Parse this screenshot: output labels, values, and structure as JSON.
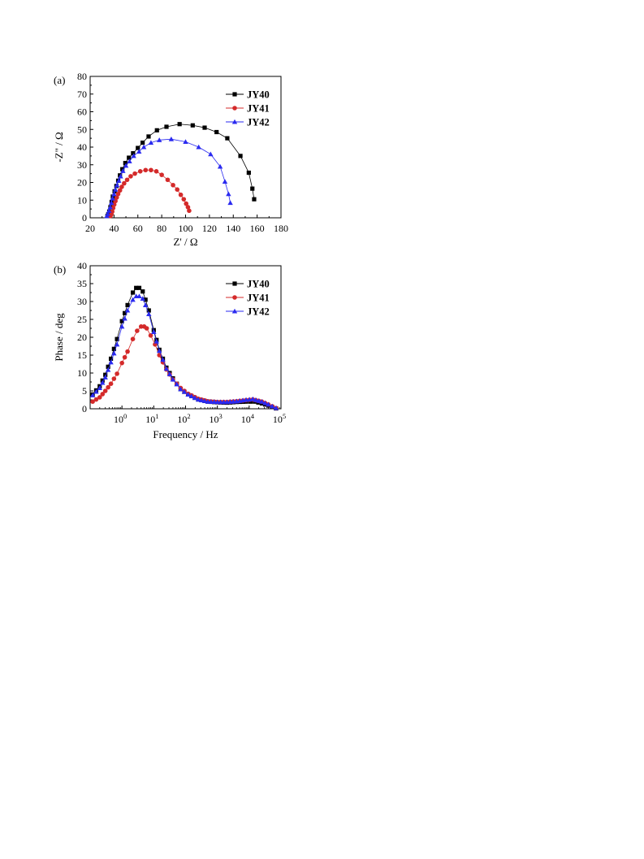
{
  "chart_data": [
    {
      "panel_label": "(a)",
      "type": "scatter",
      "xlabel": "Z' / Ω",
      "ylabel": "-Z\" / Ω",
      "xlim": [
        20,
        180
      ],
      "ylim": [
        0,
        80
      ],
      "xticks": [
        20,
        40,
        60,
        80,
        100,
        120,
        140,
        160,
        180
      ],
      "yticks": [
        0,
        10,
        20,
        30,
        40,
        50,
        60,
        70,
        80
      ],
      "legend_position": "top-right",
      "series": [
        {
          "name": "JY40",
          "color": "#000000",
          "marker": "square",
          "points": [
            [
              34.5,
              1
            ],
            [
              35.2,
              2
            ],
            [
              36,
              3.5
            ],
            [
              37,
              6
            ],
            [
              38,
              9
            ],
            [
              39,
              12
            ],
            [
              40.5,
              15
            ],
            [
              42,
              18
            ],
            [
              43.5,
              21
            ],
            [
              45,
              24
            ],
            [
              47,
              27.5
            ],
            [
              49.5,
              31
            ],
            [
              52.5,
              34
            ],
            [
              56,
              36.5
            ],
            [
              60,
              39.5
            ],
            [
              64,
              42.5
            ],
            [
              69,
              46
            ],
            [
              76,
              49.5
            ],
            [
              84,
              51.5
            ],
            [
              95,
              53
            ],
            [
              106,
              52.3
            ],
            [
              116,
              51
            ],
            [
              126,
              48.5
            ],
            [
              135,
              45
            ],
            [
              146,
              35
            ],
            [
              153,
              25.5
            ],
            [
              156,
              16.5
            ],
            [
              157.5,
              10.5
            ]
          ]
        },
        {
          "name": "JY41",
          "color": "#d42a2a",
          "marker": "circle",
          "points": [
            [
              37,
              1
            ],
            [
              37.8,
              2
            ],
            [
              38.5,
              3.5
            ],
            [
              39.3,
              5.5
            ],
            [
              40.2,
              7.5
            ],
            [
              41.2,
              9.5
            ],
            [
              42.3,
              11.5
            ],
            [
              43.5,
              13.5
            ],
            [
              45,
              15.5
            ],
            [
              46.5,
              17.5
            ],
            [
              48.5,
              19.5
            ],
            [
              51,
              21.5
            ],
            [
              54,
              23.5
            ],
            [
              57.5,
              25
            ],
            [
              62,
              26.3
            ],
            [
              66.5,
              27
            ],
            [
              71,
              27
            ],
            [
              75.5,
              26.3
            ],
            [
              80,
              24.3
            ],
            [
              85,
              21.5
            ],
            [
              89.5,
              18.5
            ],
            [
              93,
              16
            ],
            [
              96,
              13
            ],
            [
              98.5,
              10.5
            ],
            [
              100.5,
              8
            ],
            [
              102,
              6
            ],
            [
              103,
              4
            ]
          ]
        },
        {
          "name": "JY42",
          "color": "#2a2af0",
          "marker": "triangle",
          "points": [
            [
              34,
              1
            ],
            [
              34.8,
              2.2
            ],
            [
              35.8,
              4
            ],
            [
              36.8,
              6
            ],
            [
              37.8,
              8.5
            ],
            [
              38.8,
              11
            ],
            [
              40,
              13.5
            ],
            [
              41.2,
              16
            ],
            [
              42.5,
              18.5
            ],
            [
              44,
              21
            ],
            [
              45.5,
              23.5
            ],
            [
              47.5,
              26.5
            ],
            [
              50,
              29.5
            ],
            [
              53,
              32
            ],
            [
              56.5,
              35
            ],
            [
              61,
              37.5
            ],
            [
              65,
              40
            ],
            [
              71,
              42.5
            ],
            [
              78,
              44
            ],
            [
              88,
              44.5
            ],
            [
              100,
              43
            ],
            [
              111,
              40
            ],
            [
              121,
              36
            ],
            [
              129,
              29
            ],
            [
              133,
              20.5
            ],
            [
              136,
              13.5
            ],
            [
              137.5,
              8.5
            ]
          ]
        }
      ]
    },
    {
      "panel_label": "(b)",
      "type": "scatter",
      "xlabel": "Frequency / Hz",
      "ylabel": "Phase / deg",
      "xscale": "log",
      "xlim": [
        0.1,
        100000
      ],
      "ylim": [
        0,
        40
      ],
      "xticks": [
        1,
        10,
        100,
        1000,
        10000,
        100000
      ],
      "xtick_labels": [
        {
          "base": "10",
          "exp": "0"
        },
        {
          "base": "10",
          "exp": "1"
        },
        {
          "base": "10",
          "exp": "2"
        },
        {
          "base": "10",
          "exp": "3"
        },
        {
          "base": "10",
          "exp": "4"
        },
        {
          "base": "10",
          "exp": "5"
        }
      ],
      "yticks": [
        0,
        5,
        10,
        15,
        20,
        25,
        30,
        35,
        40
      ],
      "legend_position": "top-right",
      "series": [
        {
          "name": "JY40",
          "color": "#000000",
          "marker": "square",
          "key_points": [
            [
              0.12,
              4
            ],
            [
              0.2,
              6.3
            ],
            [
              0.3,
              9.5
            ],
            [
              0.45,
              14
            ],
            [
              0.7,
              19.5
            ],
            [
              1,
              24.5
            ],
            [
              1.5,
              29
            ],
            [
              2.2,
              32.5
            ],
            [
              2.8,
              33.8
            ],
            [
              3.5,
              33.8
            ],
            [
              4.5,
              32.8
            ],
            [
              5.5,
              30.5
            ],
            [
              7,
              27.5
            ],
            [
              10,
              22
            ],
            [
              15,
              16.5
            ],
            [
              25,
              11.5
            ],
            [
              40,
              8.5
            ],
            [
              70,
              5.5
            ],
            [
              120,
              4
            ],
            [
              250,
              2.6
            ],
            [
              500,
              2
            ],
            [
              1000,
              1.8
            ],
            [
              2000,
              1.7
            ],
            [
              4000,
              1.9
            ],
            [
              8000,
              2
            ],
            [
              15000,
              2
            ],
            [
              25000,
              1.5
            ],
            [
              40000,
              0.9
            ],
            [
              70000,
              0.1
            ]
          ]
        },
        {
          "name": "JY41",
          "color": "#d42a2a",
          "marker": "circle",
          "key_points": [
            [
              0.12,
              2
            ],
            [
              0.2,
              3.2
            ],
            [
              0.3,
              5
            ],
            [
              0.45,
              7
            ],
            [
              0.7,
              9.8
            ],
            [
              1,
              12.8
            ],
            [
              1.5,
              16
            ],
            [
              2.2,
              19.5
            ],
            [
              3,
              21.8
            ],
            [
              4,
              23
            ],
            [
              5,
              23
            ],
            [
              6,
              22.5
            ],
            [
              8,
              20.5
            ],
            [
              11,
              18
            ],
            [
              15,
              15
            ],
            [
              25,
              11
            ],
            [
              40,
              8.2
            ],
            [
              70,
              5.8
            ],
            [
              120,
              4.2
            ],
            [
              250,
              2.8
            ],
            [
              500,
              2.1
            ],
            [
              1000,
              1.9
            ],
            [
              2000,
              1.9
            ],
            [
              4000,
              2.1
            ],
            [
              8000,
              2.4
            ],
            [
              13000,
              2.6
            ],
            [
              25000,
              2
            ],
            [
              40000,
              1.2
            ],
            [
              70000,
              0.2
            ]
          ]
        },
        {
          "name": "JY42",
          "color": "#2a2af0",
          "marker": "triangle",
          "key_points": [
            [
              0.12,
              3.8
            ],
            [
              0.2,
              5.8
            ],
            [
              0.3,
              8.8
            ],
            [
              0.45,
              13
            ],
            [
              0.7,
              18
            ],
            [
              1,
              23
            ],
            [
              1.5,
              27.5
            ],
            [
              2.2,
              30.5
            ],
            [
              2.8,
              31.5
            ],
            [
              3.5,
              31.5
            ],
            [
              4.5,
              30.8
            ],
            [
              5.5,
              29
            ],
            [
              7,
              26.5
            ],
            [
              10,
              21.5
            ],
            [
              15,
              16.2
            ],
            [
              25,
              11.2
            ],
            [
              40,
              8.2
            ],
            [
              70,
              5.5
            ],
            [
              120,
              4
            ],
            [
              250,
              2.6
            ],
            [
              500,
              2
            ],
            [
              1000,
              1.9
            ],
            [
              2000,
              1.9
            ],
            [
              4000,
              2.1
            ],
            [
              8000,
              2.5
            ],
            [
              13000,
              2.7
            ],
            [
              25000,
              2
            ],
            [
              40000,
              1.2
            ],
            [
              70000,
              0.2
            ]
          ]
        }
      ]
    }
  ]
}
